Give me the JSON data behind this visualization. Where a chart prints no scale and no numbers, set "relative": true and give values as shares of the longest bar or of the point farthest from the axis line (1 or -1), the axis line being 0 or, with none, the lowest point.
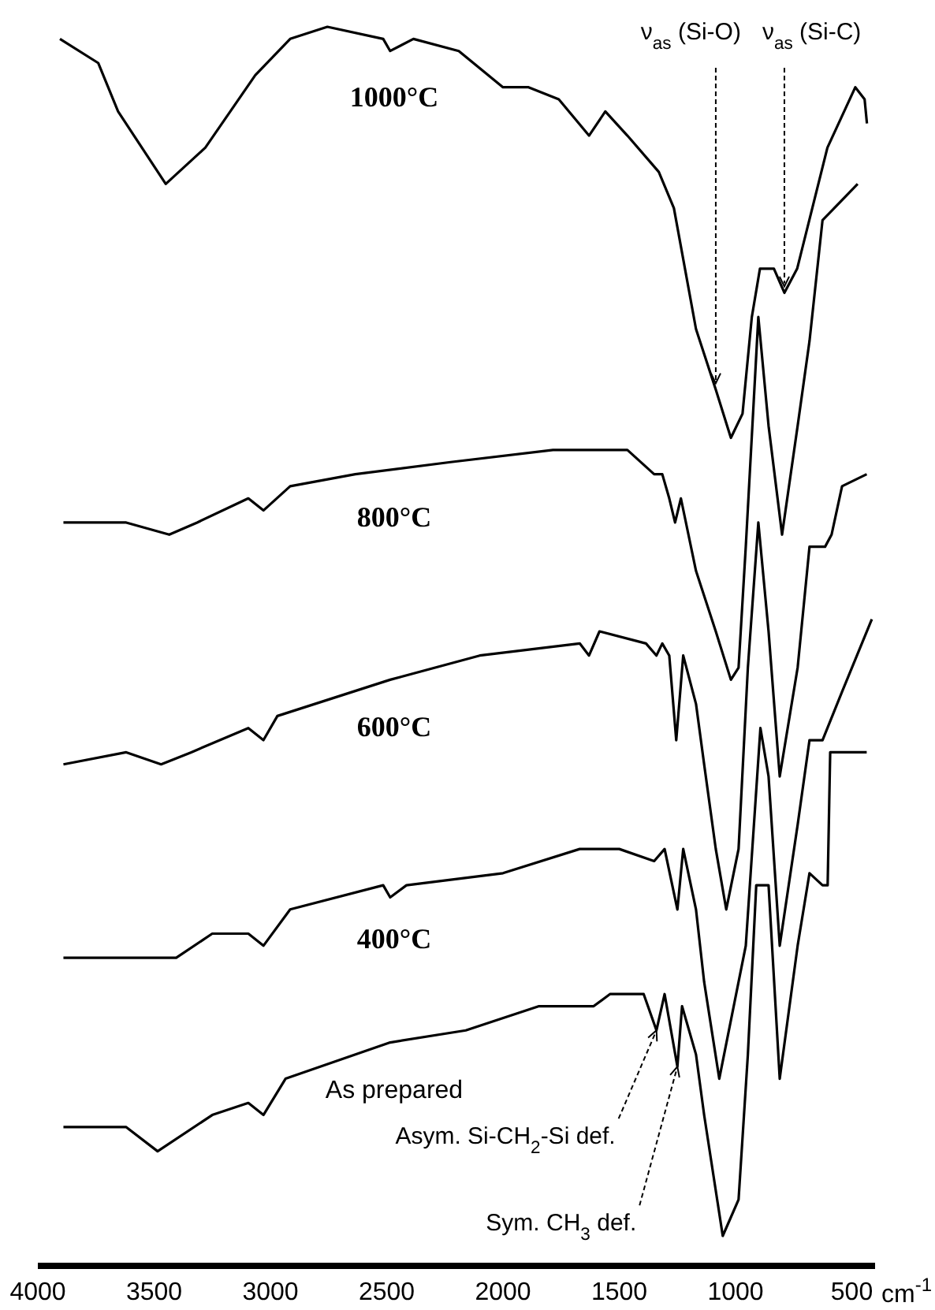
{
  "chart_data": {
    "type": "line",
    "relative": true,
    "xlim": [
      4000,
      400
    ],
    "xticks": [
      4000,
      3500,
      3000,
      2500,
      2000,
      1500,
      1000,
      500
    ],
    "xlabel": "cm$^{-1}$",
    "series": [
      {
        "name": "1000°C",
        "color": "#000000",
        "x": [
          3905,
          3740,
          3655,
          3450,
          3280,
          3065,
          2915,
          2755,
          2515,
          2485,
          2385,
          2190,
          2000,
          1890,
          1760,
          1630,
          1560,
          1465,
          1330,
          1265,
          1170,
          1085,
          1020,
          970,
          930,
          895,
          835,
          790,
          735,
          605,
          485,
          445,
          435
        ],
        "values": [
          0.99,
          0.97,
          0.93,
          0.87,
          0.9,
          0.96,
          0.99,
          1,
          0.99,
          0.98,
          0.99,
          0.98,
          0.95,
          0.95,
          0.94,
          0.91,
          0.93,
          0.91,
          0.88,
          0.85,
          0.75,
          0.7,
          0.66,
          0.68,
          0.76,
          0.8,
          0.8,
          0.78,
          0.8,
          0.9,
          0.95,
          0.94,
          0.92
        ]
      },
      {
        "name": "800°C",
        "color": "#000000",
        "x": [
          3890,
          3620,
          3435,
          3315,
          3095,
          3030,
          2915,
          2635,
          2225,
          1785,
          1465,
          1350,
          1315,
          1285,
          1260,
          1235,
          1170,
          1085,
          1020,
          987,
          956,
          902,
          858,
          800,
          733,
          682,
          626,
          475
        ],
        "values": [
          0.59,
          0.59,
          0.58,
          0.59,
          0.61,
          0.6,
          0.62,
          0.63,
          0.64,
          0.65,
          0.65,
          0.63,
          0.63,
          0.61,
          0.59,
          0.61,
          0.55,
          0.5,
          0.46,
          0.47,
          0.57,
          0.76,
          0.67,
          0.58,
          0.67,
          0.74,
          0.84,
          0.87
        ]
      },
      {
        "name": "600°C",
        "color": "#000000",
        "x": [
          3890,
          3620,
          3470,
          3340,
          3095,
          3030,
          2970,
          2485,
          2100,
          1670,
          1630,
          1585,
          1385,
          1340,
          1315,
          1285,
          1255,
          1225,
          1170,
          1135,
          1085,
          1040,
          987,
          947,
          902,
          858,
          810,
          733,
          682,
          615,
          587,
          542,
          436
        ],
        "values": [
          0.39,
          0.4,
          0.39,
          0.4,
          0.42,
          0.41,
          0.43,
          0.46,
          0.48,
          0.49,
          0.48,
          0.5,
          0.49,
          0.48,
          0.49,
          0.48,
          0.41,
          0.48,
          0.44,
          0.39,
          0.32,
          0.27,
          0.32,
          0.47,
          0.59,
          0.5,
          0.38,
          0.47,
          0.57,
          0.57,
          0.58,
          0.62,
          0.63
        ]
      },
      {
        "name": "400°C",
        "color": "#000000",
        "x": [
          3890,
          3720,
          3470,
          3405,
          3250,
          3095,
          3030,
          2915,
          2515,
          2485,
          2415,
          2000,
          1670,
          1500,
          1350,
          1305,
          1250,
          1225,
          1170,
          1135,
          1070,
          956,
          893,
          858,
          810,
          733,
          682,
          626,
          542,
          414
        ],
        "values": [
          0.23,
          0.23,
          0.23,
          0.23,
          0.25,
          0.25,
          0.24,
          0.27,
          0.29,
          0.28,
          0.29,
          0.3,
          0.32,
          0.32,
          0.31,
          0.32,
          0.27,
          0.32,
          0.27,
          0.21,
          0.13,
          0.24,
          0.42,
          0.38,
          0.24,
          0.34,
          0.41,
          0.41,
          0.45,
          0.51
        ]
      },
      {
        "name": "As prepared",
        "color": "#000000",
        "x": [
          3890,
          3620,
          3485,
          3250,
          3095,
          3030,
          2935,
          2485,
          2160,
          1845,
          1610,
          1540,
          1395,
          1340,
          1305,
          1250,
          1230,
          1170,
          1135,
          1055,
          987,
          947,
          911,
          858,
          810,
          733,
          682,
          626,
          604,
          593,
          554,
          436
        ],
        "values": [
          0.09,
          0.09,
          0.07,
          0.1,
          0.11,
          0.1,
          0.13,
          0.16,
          0.17,
          0.19,
          0.19,
          0.2,
          0.2,
          0.17,
          0.2,
          0.14,
          0.19,
          0.15,
          0.1,
          0,
          0.03,
          0.15,
          0.29,
          0.29,
          0.13,
          0.24,
          0.3,
          0.29,
          0.29,
          0.4,
          0.4,
          0.4
        ]
      }
    ],
    "annotations": [
      {
        "text": "ν$_{as}$ (Si-O)",
        "x": 1085,
        "y": 0.7
      },
      {
        "text": "ν$_{as}$ (Si-C)",
        "x": 790,
        "y": 0.78
      },
      {
        "text": "Asym. Si-CH$_{2}$-Si def.",
        "x": 1340,
        "y": 0.17
      },
      {
        "text": "Sym. CH$_{3}$ def.",
        "x": 1250,
        "y": 0.14
      }
    ]
  }
}
